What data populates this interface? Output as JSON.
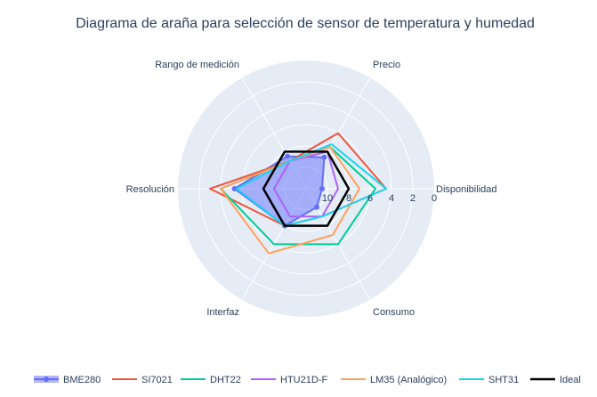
{
  "chart_data": {
    "type": "radar",
    "title": "Diagrama de araña para selección de sensor de temperatura y humedad",
    "axes": [
      "Disponibilidad",
      "Precio",
      "Rango de medición",
      "Resolución",
      "Interfaz",
      "Consumo"
    ],
    "radial_ticks": [
      "0",
      "2",
      "4",
      "6",
      "8",
      "10"
    ],
    "radial_range": [
      12,
      0
    ],
    "radial_reversed": true,
    "legend_placement": "bottom",
    "series": [
      {
        "name": "BME280",
        "color": "#636efa",
        "fill": true,
        "marker": true,
        "values": [
          10.5,
          8.6,
          8.5,
          5.3,
          8,
          10
        ]
      },
      {
        "name": "SI7021",
        "color": "#ef553b",
        "fill": false,
        "values": [
          4.5,
          6,
          9,
          3,
          8,
          9
        ]
      },
      {
        "name": "DHT22",
        "color": "#00cc96",
        "fill": false,
        "values": [
          5.5,
          7.5,
          9,
          4,
          6,
          6
        ]
      },
      {
        "name": "HTU21D-F",
        "color": "#ab63fa",
        "fill": false,
        "values": [
          9,
          8,
          9,
          9,
          9,
          9
        ]
      },
      {
        "name": "LM35 (Analógico)",
        "color": "#ffa15a",
        "fill": false,
        "values": [
          7,
          7.5,
          9,
          4,
          5,
          7
        ]
      },
      {
        "name": "SHT31",
        "color": "#19d3f3",
        "fill": false,
        "values": [
          4.5,
          7.2,
          9,
          5.5,
          8,
          9
        ]
      },
      {
        "name": "Ideal",
        "color": "#000000",
        "fill": false,
        "values": [
          8,
          8,
          8,
          8,
          8,
          8
        ]
      }
    ]
  }
}
